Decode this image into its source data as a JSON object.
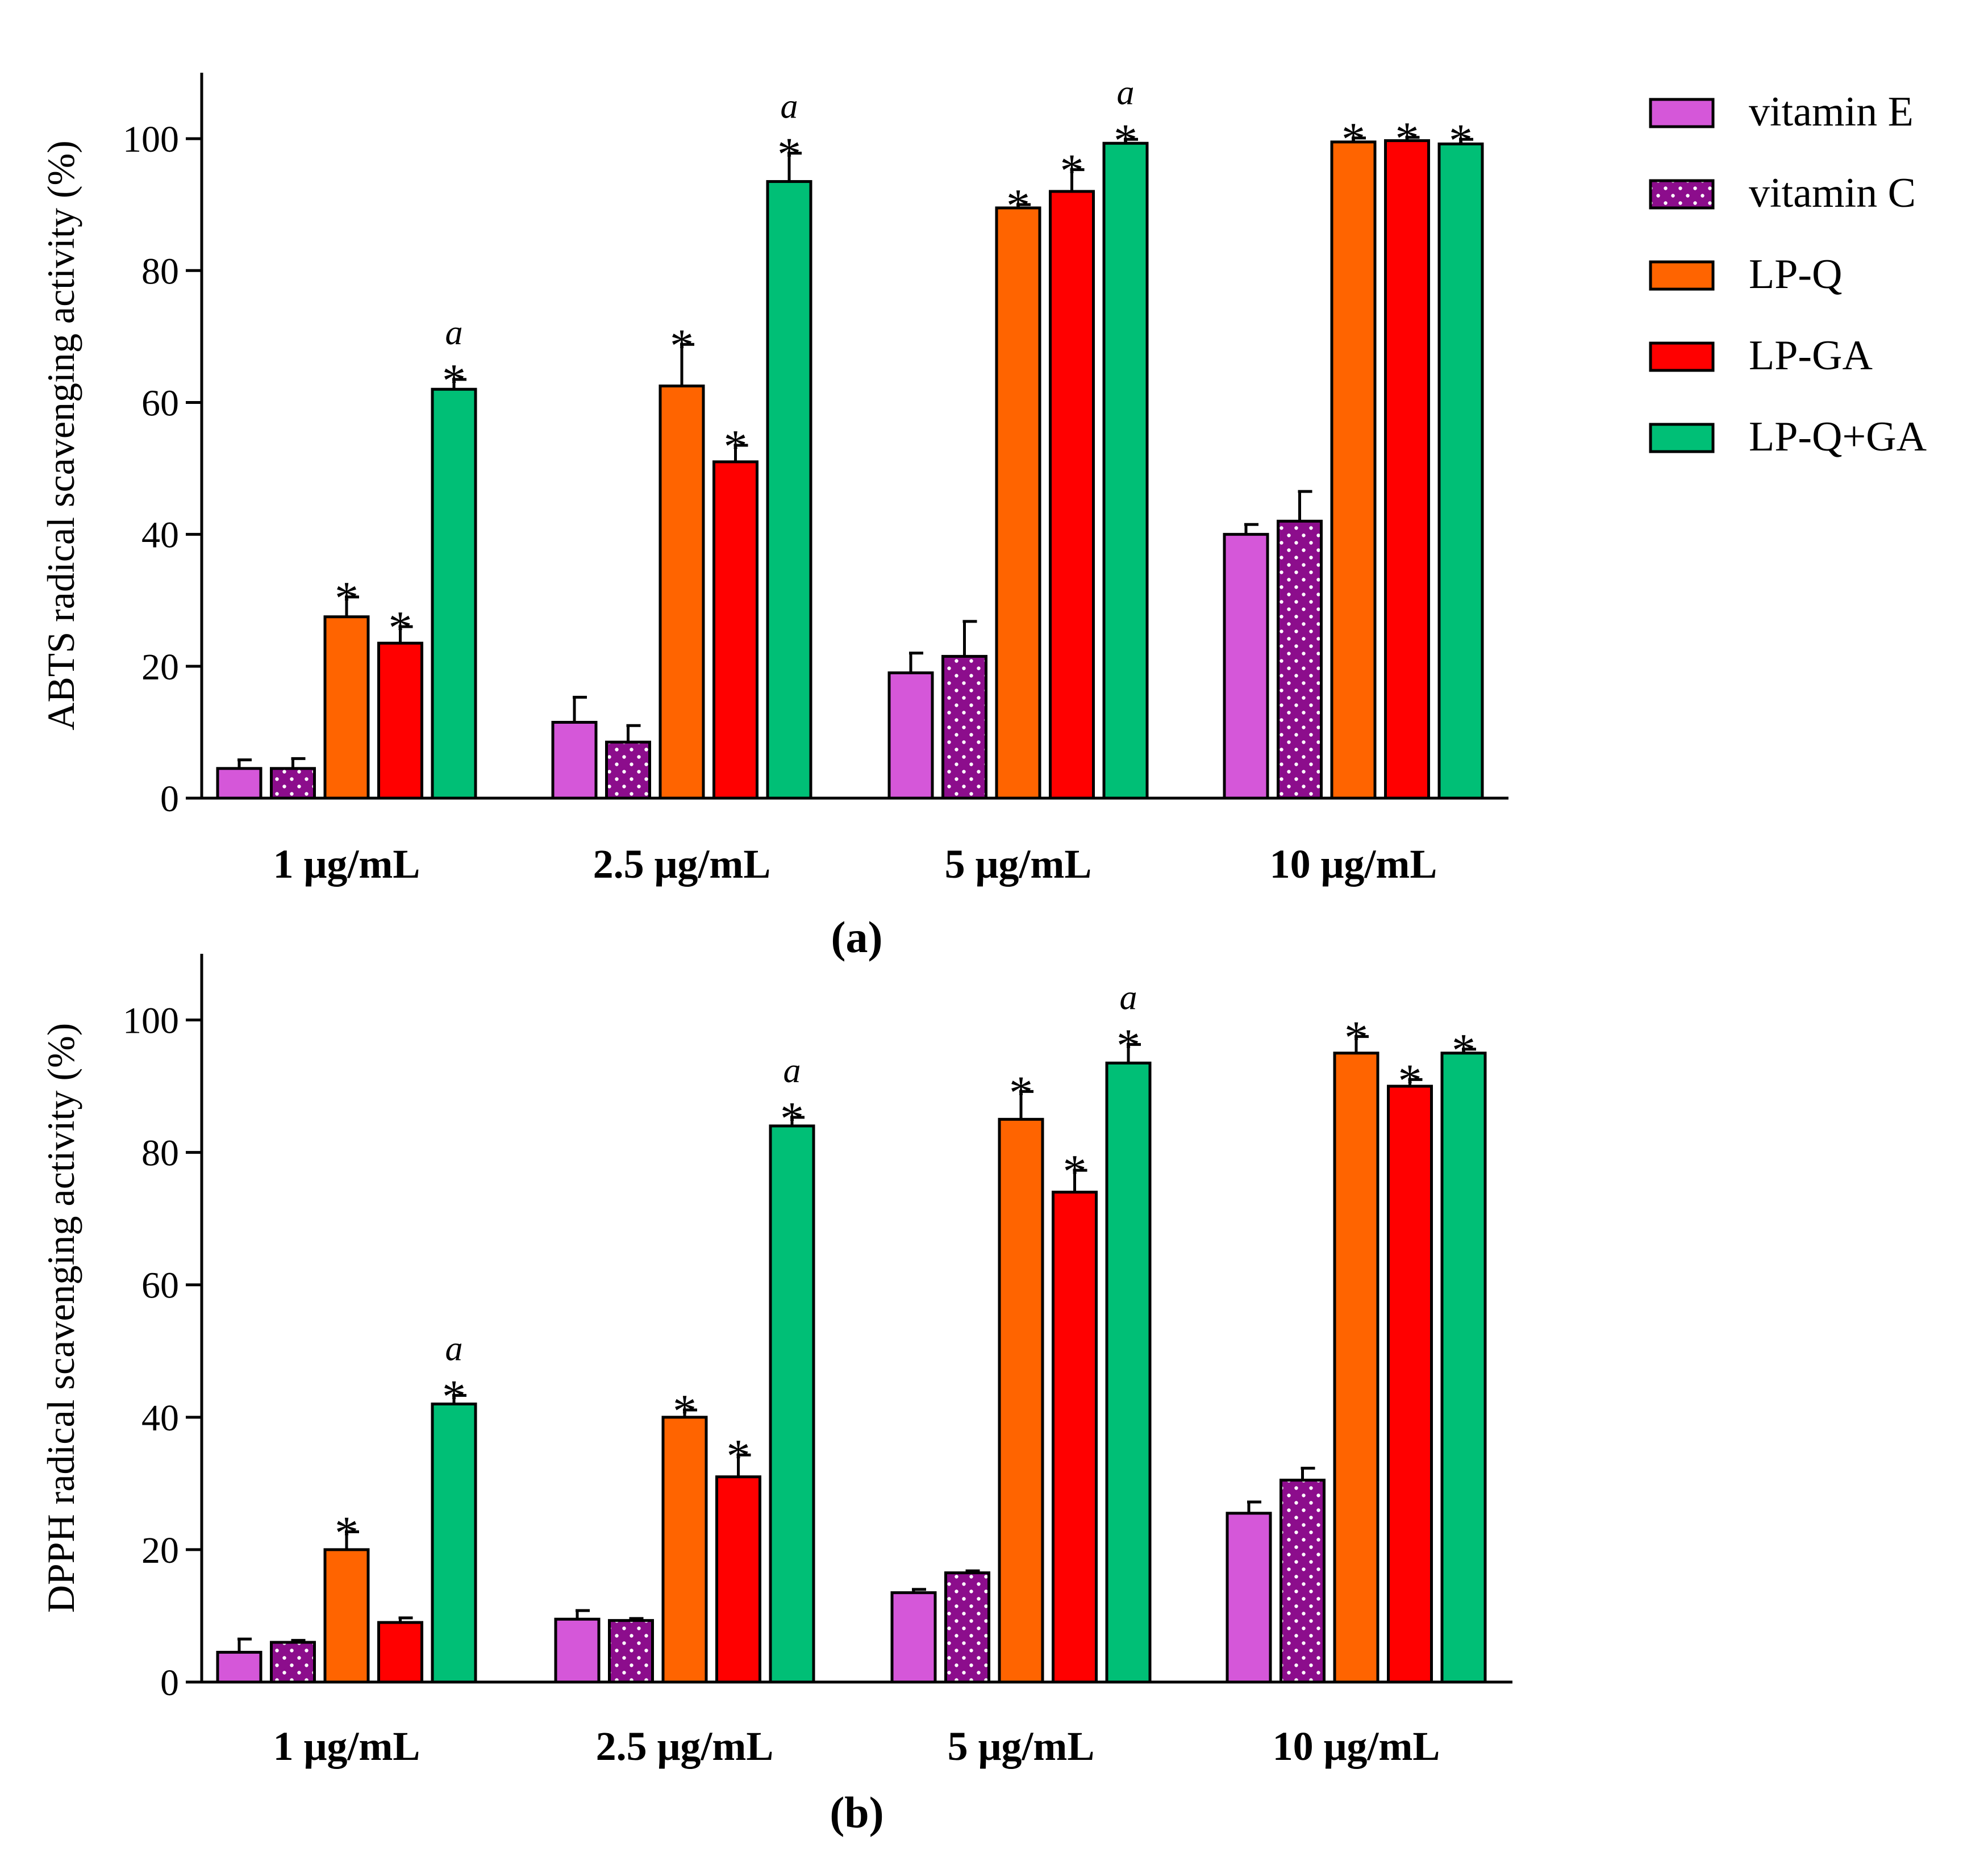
{
  "chart_data": [
    {
      "type": "bar",
      "panel_label": "(a)",
      "ylabel": "ABTS radical scavenging activity (%)",
      "ylim": [
        0,
        110
      ],
      "yticks": [
        0,
        20,
        40,
        60,
        80,
        100
      ],
      "categories": [
        "1  μg/mL",
        "2.5  μg/mL",
        "5 μg/mL",
        "10  μg/mL"
      ],
      "series": [
        {
          "name": "vitamin E",
          "values": [
            4.5,
            11.5,
            19,
            40
          ],
          "errors": [
            1.3,
            3.8,
            3,
            1.5
          ],
          "stars": [
            false,
            false,
            false,
            false
          ],
          "letters": [
            "",
            "",
            "",
            ""
          ]
        },
        {
          "name": "vitamin C",
          "values": [
            4.5,
            8.5,
            21.5,
            42
          ],
          "errors": [
            1.5,
            2.5,
            5.3,
            4.5
          ],
          "stars": [
            false,
            false,
            false,
            false
          ],
          "letters": [
            "",
            "",
            "",
            ""
          ]
        },
        {
          "name": "LP-Q",
          "values": [
            27.5,
            62.5,
            89.5,
            99.5
          ],
          "errors": [
            3,
            6.3,
            0.5,
            0.6
          ],
          "stars": [
            true,
            true,
            true,
            true
          ],
          "letters": [
            "",
            "",
            "",
            ""
          ]
        },
        {
          "name": "LP-GA",
          "values": [
            23.5,
            51,
            92,
            99.7
          ],
          "errors": [
            2.5,
            2.5,
            3.3,
            0.5
          ],
          "stars": [
            true,
            true,
            true,
            true
          ],
          "letters": [
            "",
            "",
            "",
            ""
          ]
        },
        {
          "name": "LP-Q+GA",
          "values": [
            62,
            93.5,
            99.3,
            99.2
          ],
          "errors": [
            1.5,
            4.3,
            0.6,
            0.7
          ],
          "stars": [
            true,
            true,
            true,
            true
          ],
          "letters": [
            "a",
            "a",
            "a",
            ""
          ]
        }
      ]
    },
    {
      "type": "bar",
      "panel_label": "(b)",
      "ylabel": "DPPH radical scavenging activity (%)",
      "ylim": [
        0,
        110
      ],
      "yticks": [
        0,
        20,
        40,
        60,
        80,
        100
      ],
      "categories": [
        "1  μg/mL",
        "2.5 μg/mL",
        "5 μg/mL",
        "10  μg/mL"
      ],
      "series": [
        {
          "name": "vitamin E",
          "values": [
            4.5,
            9.5,
            13.5,
            25.5
          ],
          "errors": [
            2,
            1.3,
            0.5,
            1.7
          ],
          "stars": [
            false,
            false,
            false,
            false
          ],
          "letters": [
            "",
            "",
            "",
            ""
          ]
        },
        {
          "name": "vitamin C",
          "values": [
            6,
            9.3,
            16.5,
            30.5
          ],
          "errors": [
            0.3,
            0.3,
            0.3,
            1.8
          ],
          "stars": [
            false,
            false,
            false,
            false
          ],
          "letters": [
            "",
            "",
            "",
            ""
          ]
        },
        {
          "name": "LP-Q",
          "values": [
            20,
            40,
            85,
            95
          ],
          "errors": [
            2.7,
            1.1,
            4.2,
            2.5
          ],
          "stars": [
            true,
            true,
            true,
            true
          ],
          "letters": [
            "",
            "",
            "",
            ""
          ]
        },
        {
          "name": "LP-GA",
          "values": [
            9,
            31,
            74,
            90
          ],
          "errors": [
            0.7,
            3.3,
            3.3,
            1
          ],
          "stars": [
            false,
            true,
            true,
            true
          ],
          "letters": [
            "",
            "",
            "",
            ""
          ]
        },
        {
          "name": "LP-Q+GA",
          "values": [
            42,
            84,
            93.5,
            95
          ],
          "errors": [
            1.3,
            1.3,
            2.8,
            0.6
          ],
          "stars": [
            true,
            true,
            true,
            true
          ],
          "letters": [
            "a",
            "a",
            "a",
            ""
          ]
        }
      ]
    }
  ],
  "legend": {
    "position": "top-right",
    "items": [
      {
        "label": "vitamin E",
        "color": "#d557d9",
        "pattern": "solid"
      },
      {
        "label": "vitamin C",
        "color": "#8c0d8c",
        "pattern": "dots"
      },
      {
        "label": "LP-Q",
        "color": "#ff6400",
        "pattern": "solid"
      },
      {
        "label": "LP-GA",
        "color": "#ff0000",
        "pattern": "solid"
      },
      {
        "label": "LP-Q+GA",
        "color": "#00bf76",
        "pattern": "solid"
      }
    ]
  },
  "significance_marker": "*"
}
